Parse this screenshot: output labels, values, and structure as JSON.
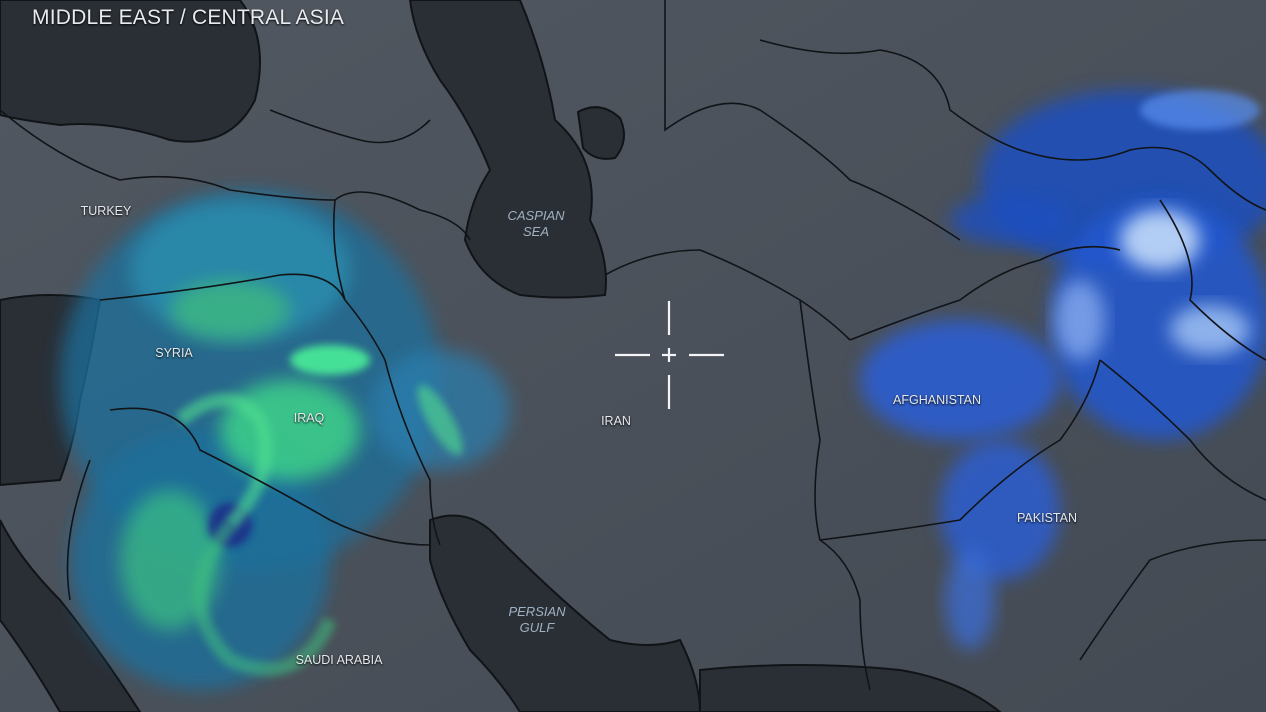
{
  "title": "MIDDLE EAST / CENTRAL ASIA",
  "labels": {
    "turkey": "TURKEY",
    "syria": "SYRIA",
    "iraq": "IRAQ",
    "iran": "IRAN",
    "afghanistan": "AFGHANISTAN",
    "pakistan": "PAKISTAN",
    "saudi_arabia": "SAUDI ARABIA"
  },
  "water_labels": {
    "caspian_line1": "CASPIAN",
    "caspian_line2": "SEA",
    "gulf_line1": "PERSIAN",
    "gulf_line2": "GULF"
  },
  "colors": {
    "land": "#4b515a",
    "water": "#2a2f36",
    "borders": "#111417",
    "precip_west": "#3fe08a",
    "precip_east": "#2a5fd8"
  },
  "crosshair_icon": "crosshair-icon"
}
